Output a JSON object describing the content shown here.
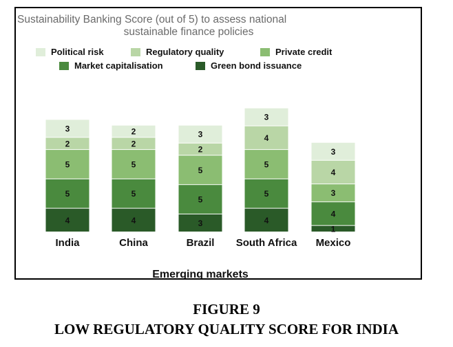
{
  "figure": {
    "number": "FIGURE 9",
    "caption": "LOW REGULATORY QUALITY SCORE FOR INDIA"
  },
  "chart_data": {
    "type": "bar",
    "stacked": true,
    "title_lines": [
      "Sustainability Banking Score (out of 5) to assess national",
      "sustainable finance policies"
    ],
    "xlabel": "Emerging markets",
    "ylabel": "",
    "grid": false,
    "legend_position": "top",
    "categories": [
      "India",
      "China",
      "Brazil",
      "South Africa",
      "Mexico"
    ],
    "series": [
      {
        "name": "Green bond issuance",
        "color": "#2a5a28",
        "values": [
          4,
          4,
          3,
          4,
          1
        ]
      },
      {
        "name": "Market capitalisation",
        "color": "#4a8a3e",
        "values": [
          5,
          5,
          5,
          5,
          4
        ]
      },
      {
        "name": "Private credit",
        "color": "#8bbd72",
        "values": [
          5,
          5,
          5,
          5,
          3
        ]
      },
      {
        "name": "Regulatory quality",
        "color": "#b9d6a6",
        "values": [
          2,
          2,
          2,
          4,
          4
        ]
      },
      {
        "name": "Political risk",
        "color": "#e0eeda",
        "values": [
          3,
          2,
          3,
          3,
          3
        ]
      }
    ],
    "legend_rows": [
      [
        "Political risk",
        "Regulatory quality",
        "Private credit"
      ],
      [
        "Market capitalisation",
        "Green bond issuance"
      ]
    ]
  }
}
